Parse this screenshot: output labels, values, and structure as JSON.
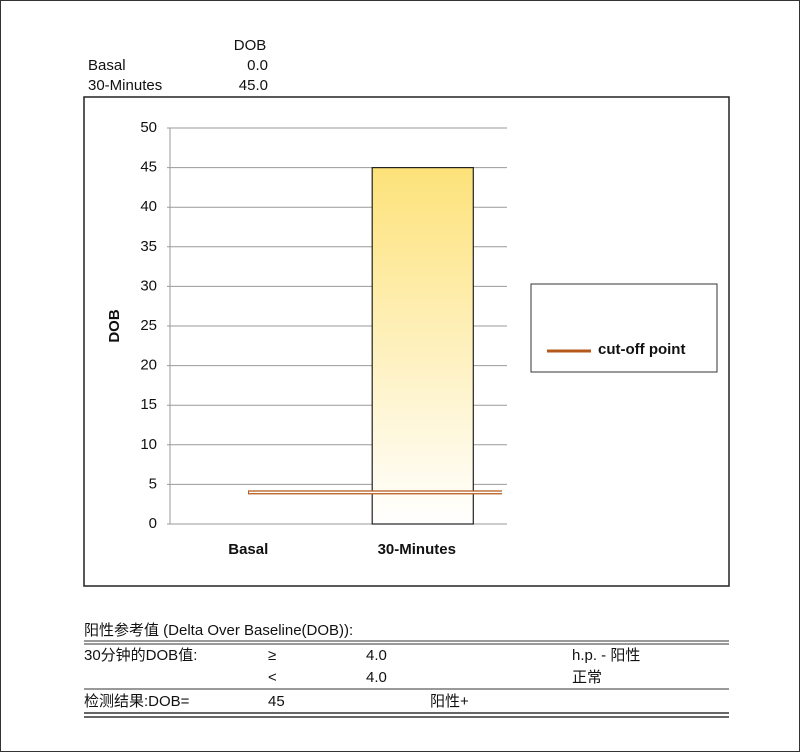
{
  "chart_data": {
    "type": "bar",
    "y_label": "DOB",
    "table_header": "DOB",
    "categories": [
      "Basal",
      "30-Minutes"
    ],
    "values": [
      0,
      45
    ],
    "value_labels": [
      "0.0",
      "45.0"
    ],
    "color": "#fde27a",
    "ylim": [
      0,
      50
    ],
    "yticks": [
      0,
      5,
      10,
      15,
      20,
      25,
      30,
      35,
      40,
      45,
      50
    ],
    "grid": true,
    "cutoff": {
      "name": "cut-off point",
      "value": 4,
      "color": "#b5581c"
    }
  },
  "reference": {
    "title": "阳性参考值 (Delta Over Baseline(DOB)):",
    "rows": [
      [
        "30分钟的DOB值:",
        "≥",
        "4.0",
        "h.p. - 阳性"
      ],
      [
        "<",
        "4.0",
        "正常"
      ]
    ],
    "result": [
      "检测结果:DOB=",
      "45",
      "阳性+"
    ]
  }
}
